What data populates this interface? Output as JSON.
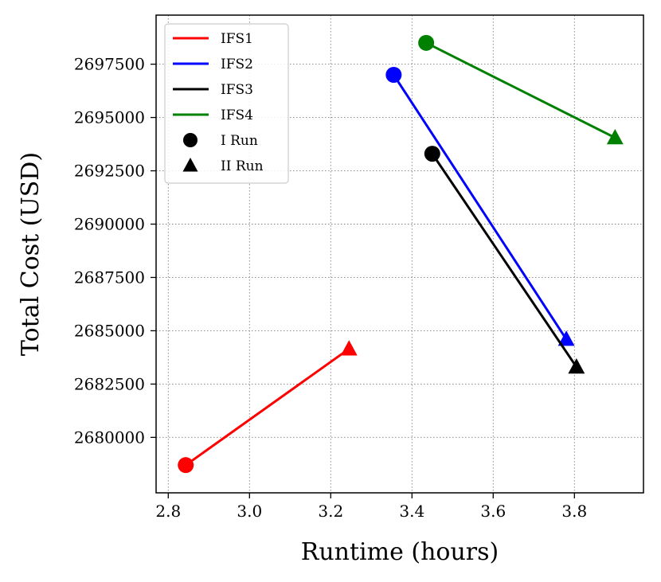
{
  "chart_data": {
    "type": "line",
    "xlabel": "Runtime (hours)",
    "ylabel": "Total Cost (USD)",
    "xlim": [
      2.77,
      3.97
    ],
    "ylim": [
      2677400,
      2699800
    ],
    "xticks": [
      2.8,
      3.0,
      3.2,
      3.4,
      3.6,
      3.8
    ],
    "xtick_labels": [
      "2.8",
      "3.0",
      "3.2",
      "3.4",
      "3.6",
      "3.8"
    ],
    "yticks": [
      2680000,
      2682500,
      2685000,
      2687500,
      2690000,
      2692500,
      2695000,
      2697500
    ],
    "ytick_labels": [
      "2680000",
      "2682500",
      "2685000",
      "2687500",
      "2690000",
      "2692500",
      "2695000",
      "2697500"
    ],
    "grid": true,
    "grid_style": "dotted",
    "legend_position": "top-left",
    "series": [
      {
        "name": "IFS1",
        "color": "#ff0000",
        "points": [
          {
            "run": "I",
            "x": 2.843,
            "y": 2678700
          },
          {
            "run": "II",
            "x": 3.245,
            "y": 2684150
          }
        ]
      },
      {
        "name": "IFS2",
        "color": "#0000ff",
        "points": [
          {
            "run": "I",
            "x": 3.355,
            "y": 2697000
          },
          {
            "run": "II",
            "x": 3.78,
            "y": 2684600
          }
        ]
      },
      {
        "name": "IFS3",
        "color": "#000000",
        "points": [
          {
            "run": "I",
            "x": 3.45,
            "y": 2693300
          },
          {
            "run": "II",
            "x": 3.805,
            "y": 2683300
          }
        ]
      },
      {
        "name": "IFS4",
        "color": "#008000",
        "points": [
          {
            "run": "I",
            "x": 3.435,
            "y": 2698500
          },
          {
            "run": "II",
            "x": 3.9,
            "y": 2694050
          }
        ]
      }
    ],
    "marker_legend": [
      {
        "label": "I  Run",
        "marker": "circle"
      },
      {
        "label": "II  Run",
        "marker": "triangle"
      }
    ]
  }
}
